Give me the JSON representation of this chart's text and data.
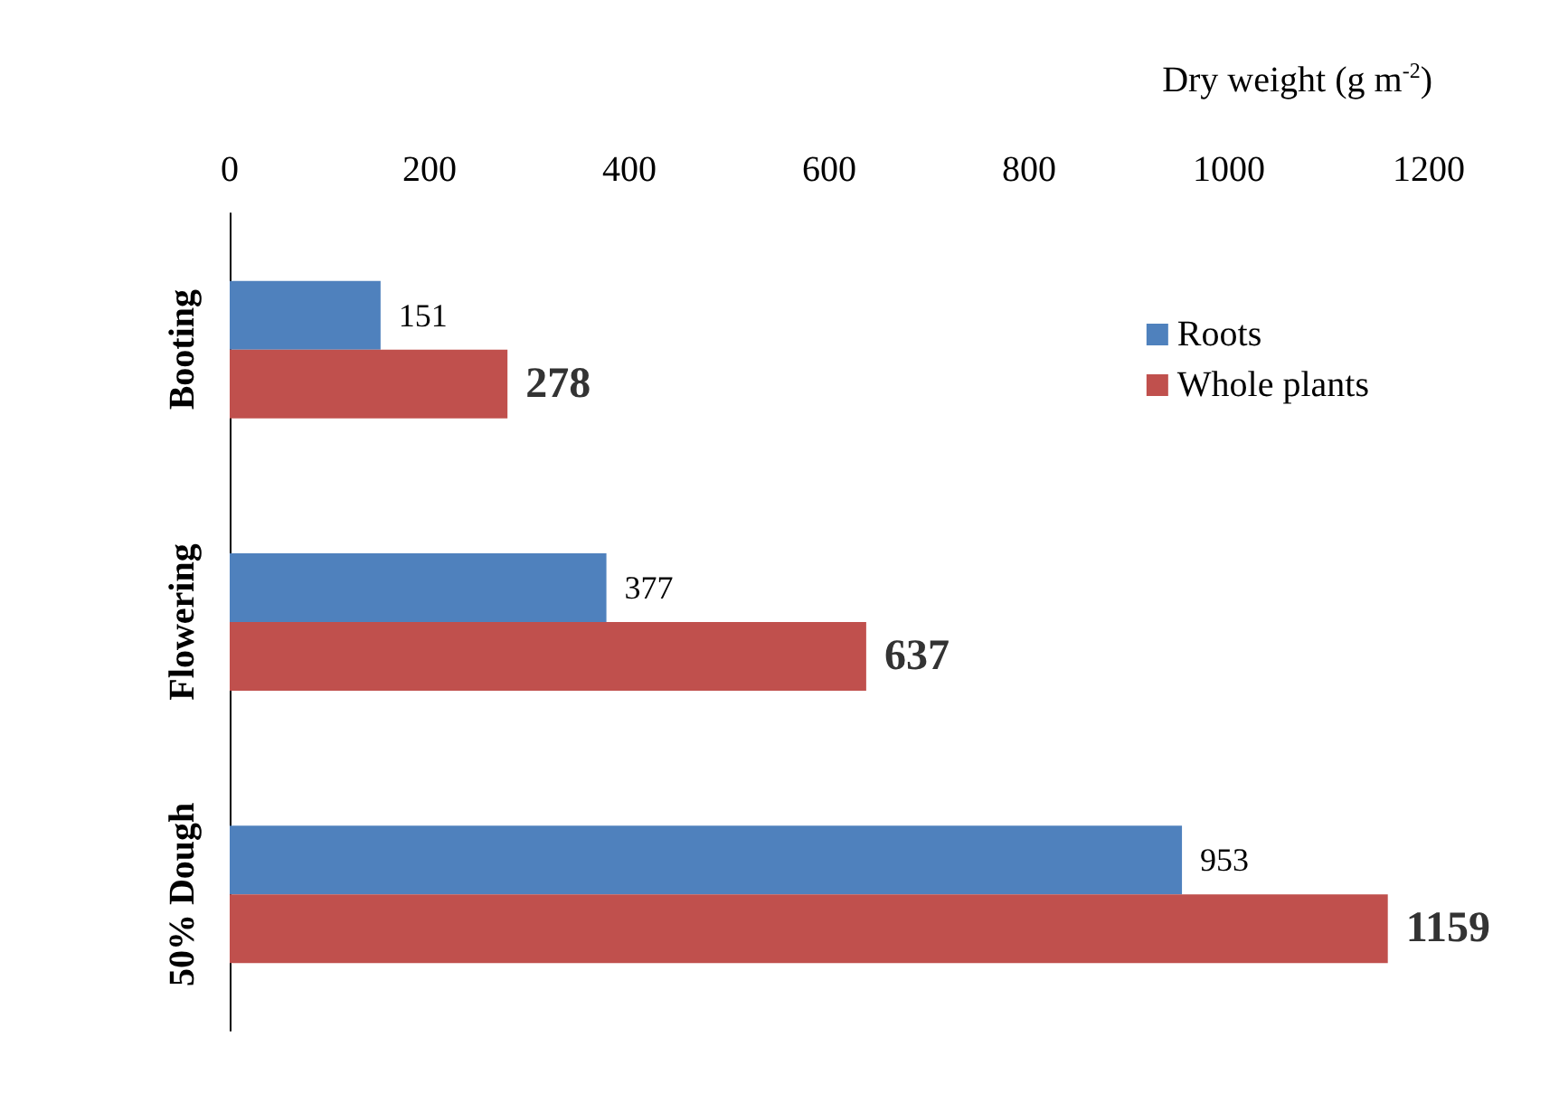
{
  "chart_data": {
    "type": "bar",
    "orientation": "horizontal",
    "xlabel": "Dry weight (g m$^{-2}$)",
    "categories": [
      "Booting",
      "Flowering",
      "50% Dough"
    ],
    "series": [
      {
        "name": "Roots",
        "color": "#4f81bd",
        "values": [
          151,
          377,
          953
        ]
      },
      {
        "name": "Whole plants",
        "color": "#c0504d",
        "values": [
          278,
          637,
          1159
        ]
      }
    ],
    "xlim": [
      0,
      1200
    ],
    "xticks": [
      0,
      200,
      400,
      600,
      800,
      1000,
      1200
    ],
    "data_labels": true,
    "grid": false,
    "legend": "top right"
  }
}
